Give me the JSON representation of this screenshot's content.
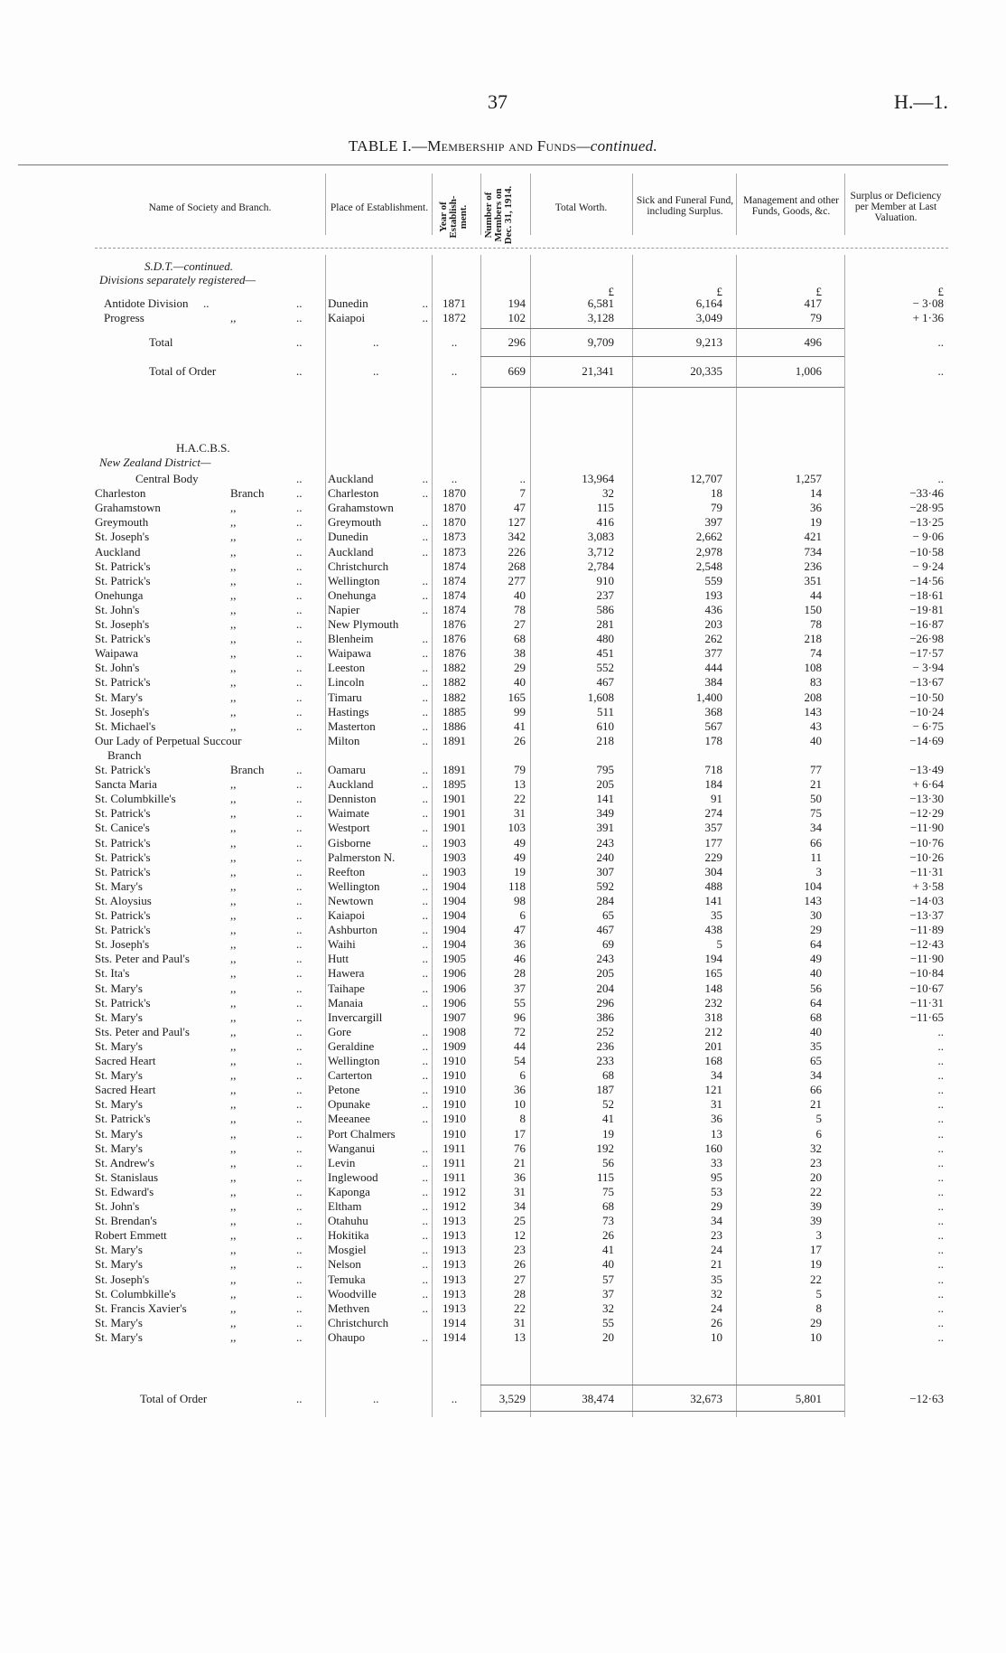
{
  "page_number": "37",
  "doc_ref": "H.—1.",
  "title": {
    "prefix": "TABLE I.—",
    "main": "Membership and Funds",
    "suffix": "—continued."
  },
  "columns": {
    "name": "Name of Society and Branch.",
    "place": "Place of Establishment.",
    "year": "Year of Establish-ment.",
    "members": "Number of Members on Dec. 31, 1914.",
    "total": "Total Worth.",
    "sick": "Sick and Funeral Fund, including Surplus.",
    "mgmt": "Management and other Funds, Goods, &c.",
    "surplus": "Surplus or Deficiency per Member at Last Valuation."
  },
  "currency": "£",
  "sdt": {
    "heading": "S.D.T.—continued.",
    "subheading": "Divisions separately registered—",
    "rows": [
      [
        "Antidote Division",
        "..",
        "Dunedin",
        "1871",
        "194",
        "6,581",
        "6,164",
        "417",
        "− 3·08"
      ],
      [
        "Progress",
        ",,",
        "Kaiapoi",
        "1872",
        "102",
        "3,128",
        "3,049",
        "79",
        "+ 1·36"
      ]
    ],
    "total": {
      "label": "Total",
      "place": "..",
      "year": "..",
      "members": "296",
      "total": "9,709",
      "sick": "9,213",
      "mgmt": "496",
      "surplus": ".."
    },
    "order_total": {
      "label": "Total of Order",
      "place": "..",
      "year": "..",
      "members": "669",
      "total": "21,341",
      "sick": "20,335",
      "mgmt": "1,006",
      "surplus": ".."
    }
  },
  "hacbs": {
    "heading": "H.A.C.B.S.",
    "subheading": "New Zealand District—",
    "rows": [
      [
        "Central Body",
        "",
        "Auckland",
        "..",
        "..",
        "13,964",
        "12,707",
        "1,257",
        ".."
      ],
      [
        "Charleston",
        "Branch",
        "Charleston",
        "1870",
        "7",
        "32",
        "18",
        "14",
        "−33·46"
      ],
      [
        "Grahamstown",
        ",,",
        "Grahamstown",
        "1870",
        "47",
        "115",
        "79",
        "36",
        "−28·95"
      ],
      [
        "Greymouth",
        ",,",
        "Greymouth",
        "1870",
        "127",
        "416",
        "397",
        "19",
        "−13·25"
      ],
      [
        "St. Joseph's",
        ",,",
        "Dunedin",
        "1873",
        "342",
        "3,083",
        "2,662",
        "421",
        "− 9·06"
      ],
      [
        "Auckland",
        ",,",
        "Auckland",
        "1873",
        "226",
        "3,712",
        "2,978",
        "734",
        "−10·58"
      ],
      [
        "St. Patrick's",
        ",,",
        "Christchurch",
        "1874",
        "268",
        "2,784",
        "2,548",
        "236",
        "− 9·24"
      ],
      [
        "St. Patrick's",
        ",,",
        "Wellington",
        "1874",
        "277",
        "910",
        "559",
        "351",
        "−14·56"
      ],
      [
        "Onehunga",
        ",,",
        "Onehunga",
        "1874",
        "40",
        "237",
        "193",
        "44",
        "−18·61"
      ],
      [
        "St. John's",
        ",,",
        "Napier",
        "1874",
        "78",
        "586",
        "436",
        "150",
        "−19·81"
      ],
      [
        "St. Joseph's",
        ",,",
        "New Plymouth",
        "1876",
        "27",
        "281",
        "203",
        "78",
        "−16·87"
      ],
      [
        "St. Patrick's",
        ",,",
        "Blenheim",
        "1876",
        "68",
        "480",
        "262",
        "218",
        "−26·98"
      ],
      [
        "Waipawa",
        ",,",
        "Waipawa",
        "1876",
        "38",
        "451",
        "377",
        "74",
        "−17·57"
      ],
      [
        "St. John's",
        ",,",
        "Leeston",
        "1882",
        "29",
        "552",
        "444",
        "108",
        "− 3·94"
      ],
      [
        "St. Patrick's",
        ",,",
        "Lincoln",
        "1882",
        "40",
        "467",
        "384",
        "83",
        "−13·67"
      ],
      [
        "St. Mary's",
        ",,",
        "Timaru",
        "1882",
        "165",
        "1,608",
        "1,400",
        "208",
        "−10·50"
      ],
      [
        "St. Joseph's",
        ",,",
        "Hastings",
        "1885",
        "99",
        "511",
        "368",
        "143",
        "−10·24"
      ],
      [
        "St. Michael's",
        ",,",
        "Masterton",
        "1886",
        "41",
        "610",
        "567",
        "43",
        "− 6·75"
      ],
      [
        "Our Lady of Perpetual Succour Branch",
        "",
        "Milton",
        "1891",
        "26",
        "218",
        "178",
        "40",
        "−14·69"
      ],
      [
        "St. Patrick's",
        "Branch",
        "Oamaru",
        "1891",
        "79",
        "795",
        "718",
        "77",
        "−13·49"
      ],
      [
        "Sancta Maria",
        ",,",
        "Auckland",
        "1895",
        "13",
        "205",
        "184",
        "21",
        "+ 6·64"
      ],
      [
        "St. Columbkille's",
        ",,",
        "Denniston",
        "1901",
        "22",
        "141",
        "91",
        "50",
        "−13·30"
      ],
      [
        "St. Patrick's",
        ",,",
        "Waimate",
        "1901",
        "31",
        "349",
        "274",
        "75",
        "−12·29"
      ],
      [
        "St. Canice's",
        ",,",
        "Westport",
        "1901",
        "103",
        "391",
        "357",
        "34",
        "−11·90"
      ],
      [
        "St. Patrick's",
        ",,",
        "Gisborne",
        "1903",
        "49",
        "243",
        "177",
        "66",
        "−10·76"
      ],
      [
        "St. Patrick's",
        ",,",
        "Palmerston N.",
        "1903",
        "49",
        "240",
        "229",
        "11",
        "−10·26"
      ],
      [
        "St. Patrick's",
        ",,",
        "Reefton",
        "1903",
        "19",
        "307",
        "304",
        "3",
        "−11·31"
      ],
      [
        "St. Mary's",
        ",,",
        "Wellington",
        "1904",
        "118",
        "592",
        "488",
        "104",
        "+ 3·58"
      ],
      [
        "St. Aloysius",
        ",,",
        "Newtown",
        "1904",
        "98",
        "284",
        "141",
        "143",
        "−14·03"
      ],
      [
        "St. Patrick's",
        ",,",
        "Kaiapoi",
        "1904",
        "6",
        "65",
        "35",
        "30",
        "−13·37"
      ],
      [
        "St. Patrick's",
        ",,",
        "Ashburton",
        "1904",
        "47",
        "467",
        "438",
        "29",
        "−11·89"
      ],
      [
        "St. Joseph's",
        ",,",
        "Waihi",
        "1904",
        "36",
        "69",
        "5",
        "64",
        "−12·43"
      ],
      [
        "Sts. Peter and Paul's",
        ",,",
        "Hutt",
        "1905",
        "46",
        "243",
        "194",
        "49",
        "−11·90"
      ],
      [
        "St. Ita's",
        ",,",
        "Hawera",
        "1906",
        "28",
        "205",
        "165",
        "40",
        "−10·84"
      ],
      [
        "St. Mary's",
        ",,",
        "Taihape",
        "1906",
        "37",
        "204",
        "148",
        "56",
        "−10·67"
      ],
      [
        "St. Patrick's",
        ",,",
        "Manaia",
        "1906",
        "55",
        "296",
        "232",
        "64",
        "−11·31"
      ],
      [
        "St. Mary's",
        ",,",
        "Invercargill",
        "1907",
        "96",
        "386",
        "318",
        "68",
        "−11·65"
      ],
      [
        "Sts. Peter and Paul's",
        ",,",
        "Gore",
        "1908",
        "72",
        "252",
        "212",
        "40",
        ".."
      ],
      [
        "St. Mary's",
        ",,",
        "Geraldine",
        "1909",
        "44",
        "236",
        "201",
        "35",
        ".."
      ],
      [
        "Sacred Heart",
        ",,",
        "Wellington",
        "1910",
        "54",
        "233",
        "168",
        "65",
        ".."
      ],
      [
        "St. Mary's",
        ",,",
        "Carterton",
        "1910",
        "6",
        "68",
        "34",
        "34",
        ".."
      ],
      [
        "Sacred Heart",
        ",,",
        "Petone",
        "1910",
        "36",
        "187",
        "121",
        "66",
        ".."
      ],
      [
        "St. Mary's",
        ",,",
        "Opunake",
        "1910",
        "10",
        "52",
        "31",
        "21",
        ".."
      ],
      [
        "St. Patrick's",
        ",,",
        "Meeanee",
        "1910",
        "8",
        "41",
        "36",
        "5",
        ".."
      ],
      [
        "St. Mary's",
        ",,",
        "Port Chalmers",
        "1910",
        "17",
        "19",
        "13",
        "6",
        ".."
      ],
      [
        "St. Mary's",
        ",,",
        "Wanganui",
        "1911",
        "76",
        "192",
        "160",
        "32",
        ".."
      ],
      [
        "St. Andrew's",
        ",,",
        "Levin",
        "1911",
        "21",
        "56",
        "33",
        "23",
        ".."
      ],
      [
        "St. Stanislaus",
        ",,",
        "Inglewood",
        "1911",
        "36",
        "115",
        "95",
        "20",
        ".."
      ],
      [
        "St. Edward's",
        ",,",
        "Kaponga",
        "1912",
        "31",
        "75",
        "53",
        "22",
        ".."
      ],
      [
        "St. John's",
        ",,",
        "Eltham",
        "1912",
        "34",
        "68",
        "29",
        "39",
        ".."
      ],
      [
        "St. Brendan's",
        ",,",
        "Otahuhu",
        "1913",
        "25",
        "73",
        "34",
        "39",
        ".."
      ],
      [
        "Robert Emmett",
        ",,",
        "Hokitika",
        "1913",
        "12",
        "26",
        "23",
        "3",
        ".."
      ],
      [
        "St. Mary's",
        ",,",
        "Mosgiel",
        "1913",
        "23",
        "41",
        "24",
        "17",
        ".."
      ],
      [
        "St. Mary's",
        ",,",
        "Nelson",
        "1913",
        "26",
        "40",
        "21",
        "19",
        ".."
      ],
      [
        "St. Joseph's",
        ",,",
        "Temuka",
        "1913",
        "27",
        "57",
        "35",
        "22",
        ".."
      ],
      [
        "St. Columbkille's",
        ",,",
        "Woodville",
        "1913",
        "28",
        "37",
        "32",
        "5",
        ".."
      ],
      [
        "St. Francis Xavier's",
        ",,",
        "Methven",
        "1913",
        "22",
        "32",
        "24",
        "8",
        ".."
      ],
      [
        "St. Mary's",
        ",,",
        "Christchurch",
        "1914",
        "31",
        "55",
        "26",
        "29",
        ".."
      ],
      [
        "St. Mary's",
        ",,",
        "Ohaupo",
        "1914",
        "13",
        "20",
        "10",
        "10",
        ".."
      ]
    ],
    "order_total": {
      "label": "Total of Order",
      "place": "..",
      "year": "..",
      "members": "3,529",
      "total": "38,474",
      "sick": "32,673",
      "mgmt": "5,801",
      "surplus": "−12·63"
    }
  }
}
